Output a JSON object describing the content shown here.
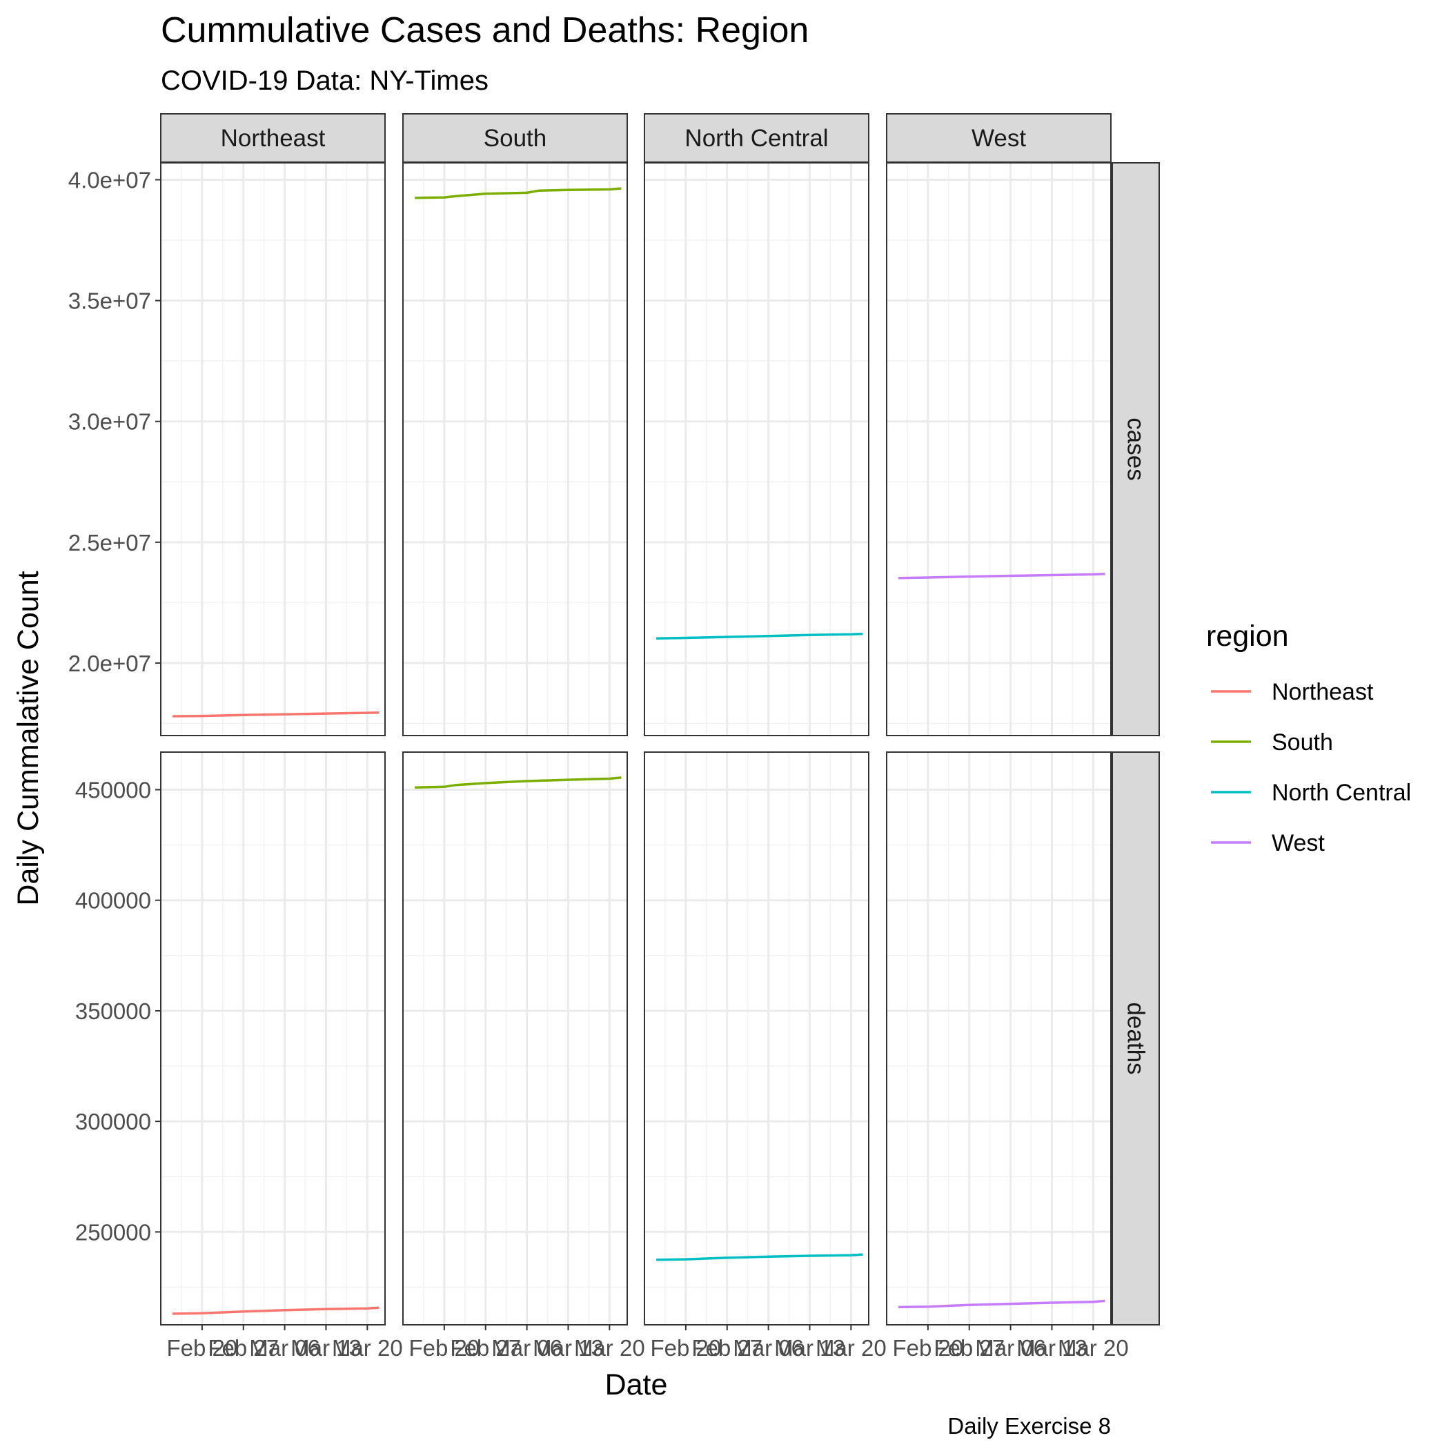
{
  "chart_data": {
    "type": "line",
    "title": "Cummulative Cases and Deaths: Region",
    "subtitle": "COVID-19 Data: NY-Times",
    "xlabel": "Date",
    "ylabel": "Daily Cummalative Count",
    "caption": "Daily Exercise 8",
    "columns": [
      "Northeast",
      "South",
      "North Central",
      "West"
    ],
    "rows": [
      "cases",
      "deaths"
    ],
    "x": [
      "2021-02-20",
      "2021-02-27",
      "2021-03-06",
      "2021-03-13",
      "2021-03-20"
    ],
    "x_tick_labels": [
      "Feb 20",
      "Feb 27",
      "Mar 06",
      "Mar 13",
      "Mar 20"
    ],
    "xlim": [
      "2021-02-13",
      "2021-03-23"
    ],
    "legend": {
      "title": "region",
      "position": "right",
      "entries": [
        {
          "name": "Northeast",
          "color": "#F8766D"
        },
        {
          "name": "South",
          "color": "#7CAE00"
        },
        {
          "name": "North Central",
          "color": "#00BFC4"
        },
        {
          "name": "West",
          "color": "#C77CFF"
        }
      ]
    },
    "grid": true,
    "theme": "bw",
    "panels": [
      {
        "row": "cases",
        "ylim": [
          17000000,
          40700000
        ],
        "y_ticks": [
          20000000,
          25000000,
          30000000,
          35000000,
          40000000
        ],
        "y_tick_labels": [
          "2.0e+07",
          "2.5e+07",
          "3.0e+07",
          "3.5e+07",
          "4.0e+07"
        ],
        "series": [
          {
            "name": "Northeast",
            "x": [
              "2021-02-15",
              "2021-02-20",
              "2021-02-27",
              "2021-03-06",
              "2021-03-13",
              "2021-03-20",
              "2021-03-22"
            ],
            "values": [
              17800000,
              17810000,
              17850000,
              17880000,
              17910000,
              17940000,
              17950000
            ]
          },
          {
            "name": "South",
            "x": [
              "2021-02-15",
              "2021-02-20",
              "2021-02-22",
              "2021-02-27",
              "2021-03-06",
              "2021-03-08",
              "2021-03-13",
              "2021-03-20",
              "2021-03-22"
            ],
            "values": [
              39250000,
              39270000,
              39320000,
              39420000,
              39460000,
              39550000,
              39580000,
              39600000,
              39640000
            ]
          },
          {
            "name": "North Central",
            "x": [
              "2021-02-15",
              "2021-02-20",
              "2021-02-27",
              "2021-03-06",
              "2021-03-13",
              "2021-03-20",
              "2021-03-22"
            ],
            "values": [
              21020000,
              21040000,
              21080000,
              21120000,
              21160000,
              21190000,
              21210000
            ]
          },
          {
            "name": "West",
            "x": [
              "2021-02-15",
              "2021-02-20",
              "2021-02-27",
              "2021-03-06",
              "2021-03-13",
              "2021-03-20",
              "2021-03-22"
            ],
            "values": [
              23520000,
              23540000,
              23580000,
              23610000,
              23640000,
              23670000,
              23690000
            ]
          }
        ]
      },
      {
        "row": "deaths",
        "ylim": [
          208000,
          467000
        ],
        "y_ticks": [
          250000,
          300000,
          350000,
          400000,
          450000
        ],
        "y_tick_labels": [
          "250000",
          "300000",
          "350000",
          "400000",
          "450000"
        ],
        "series": [
          {
            "name": "Northeast",
            "x": [
              "2021-02-15",
              "2021-02-20",
              "2021-02-27",
              "2021-03-06",
              "2021-03-13",
              "2021-03-20",
              "2021-03-22"
            ],
            "values": [
              213000,
              213200,
              214000,
              214600,
              215100,
              215400,
              215700
            ]
          },
          {
            "name": "South",
            "x": [
              "2021-02-15",
              "2021-02-20",
              "2021-02-22",
              "2021-02-27",
              "2021-03-06",
              "2021-03-13",
              "2021-03-20",
              "2021-03-22"
            ],
            "values": [
              451000,
              451300,
              452100,
              453000,
              453900,
              454500,
              455000,
              455500
            ]
          },
          {
            "name": "North Central",
            "x": [
              "2021-02-15",
              "2021-02-20",
              "2021-02-27",
              "2021-03-06",
              "2021-03-13",
              "2021-03-20",
              "2021-03-22"
            ],
            "values": [
              237400,
              237600,
              238300,
              238800,
              239200,
              239500,
              239800
            ]
          },
          {
            "name": "West",
            "x": [
              "2021-02-15",
              "2021-02-20",
              "2021-02-27",
              "2021-03-06",
              "2021-03-13",
              "2021-03-20",
              "2021-03-22"
            ],
            "values": [
              216000,
              216200,
              217000,
              217500,
              218000,
              218400,
              218800
            ]
          }
        ]
      }
    ]
  }
}
